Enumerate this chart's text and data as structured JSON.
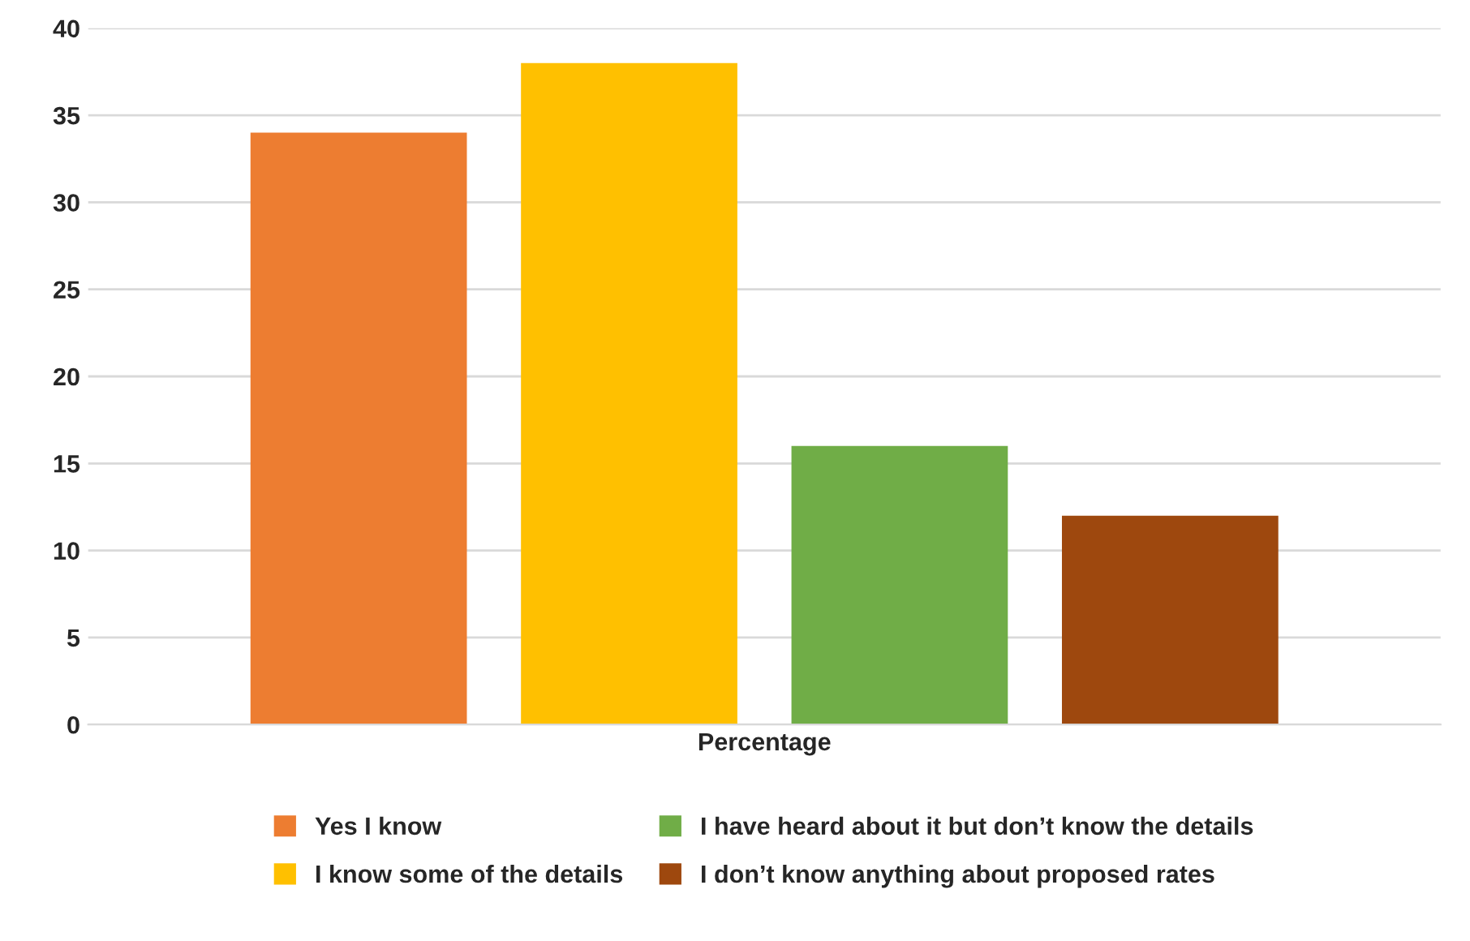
{
  "chart_data": {
    "type": "bar",
    "categories": [
      "Percentage"
    ],
    "series": [
      {
        "name": "Yes I know",
        "color": "#ed7d31",
        "values": [
          34
        ]
      },
      {
        "name": "I know some of the details",
        "color": "#ffc000",
        "values": [
          38
        ]
      },
      {
        "name": "I have heard about it but don’t know the details",
        "color": "#70ad47",
        "values": [
          16
        ]
      },
      {
        "name": "I don’t know anything about proposed rates",
        "color": "#9e480e",
        "values": [
          12
        ]
      }
    ],
    "ylim": [
      0,
      40
    ],
    "yticks": [
      0,
      5,
      10,
      15,
      20,
      25,
      30,
      35,
      40
    ],
    "grid": "y",
    "legend": "bottom"
  }
}
